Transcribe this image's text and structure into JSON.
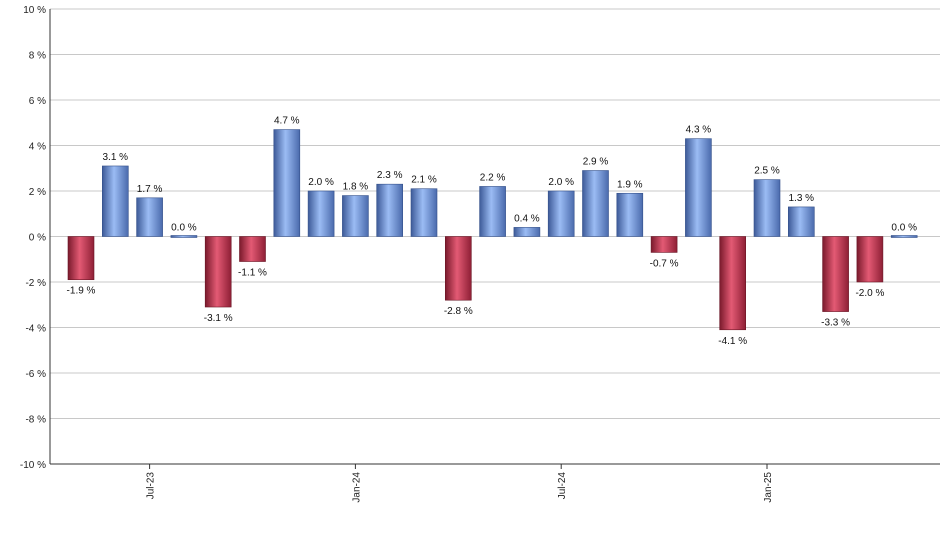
{
  "chart_data": {
    "type": "bar",
    "ylim": [
      -10,
      10
    ],
    "y_ticks": [
      "10 %",
      "8 %",
      "6 %",
      "4 %",
      "2 %",
      "0 %",
      "-2 %",
      "-4 %",
      "-6 %",
      "-8 %",
      "-10 %"
    ],
    "y_tick_values": [
      10,
      8,
      6,
      4,
      2,
      0,
      -2,
      -4,
      -6,
      -8,
      -10
    ],
    "x_ticks": [
      {
        "label": "Jul-23",
        "index": 2
      },
      {
        "label": "Jan-24",
        "index": 8
      },
      {
        "label": "Jul-24",
        "index": 14
      },
      {
        "label": "Jan-25",
        "index": 20
      }
    ],
    "values": [
      -1.9,
      3.1,
      1.7,
      0.0,
      -3.1,
      -1.1,
      4.7,
      2.0,
      1.8,
      2.3,
      2.1,
      -2.8,
      2.2,
      0.4,
      2.0,
      2.9,
      1.9,
      -0.7,
      4.3,
      -4.1,
      2.5,
      1.3,
      -3.3,
      -2.0,
      0.0
    ],
    "value_labels": [
      "-1.9 %",
      "3.1 %",
      "1.7 %",
      "0.0 %",
      "-3.1 %",
      "-1.1 %",
      "4.7 %",
      "2.0 %",
      "1.8 %",
      "2.3 %",
      "2.1 %",
      "-2.8 %",
      "2.2 %",
      "0.4 %",
      "2.0 %",
      "2.9 %",
      "1.9 %",
      "-0.7 %",
      "4.3 %",
      "-4.1 %",
      "2.5 %",
      "1.3 %",
      "-3.3 %",
      "-2.0 %",
      "0.0 %"
    ],
    "grid": true,
    "colors": {
      "positive": "#6f95dc",
      "negative": "#c93350",
      "grid": "#c8c8c8",
      "axis": "#333333"
    }
  }
}
